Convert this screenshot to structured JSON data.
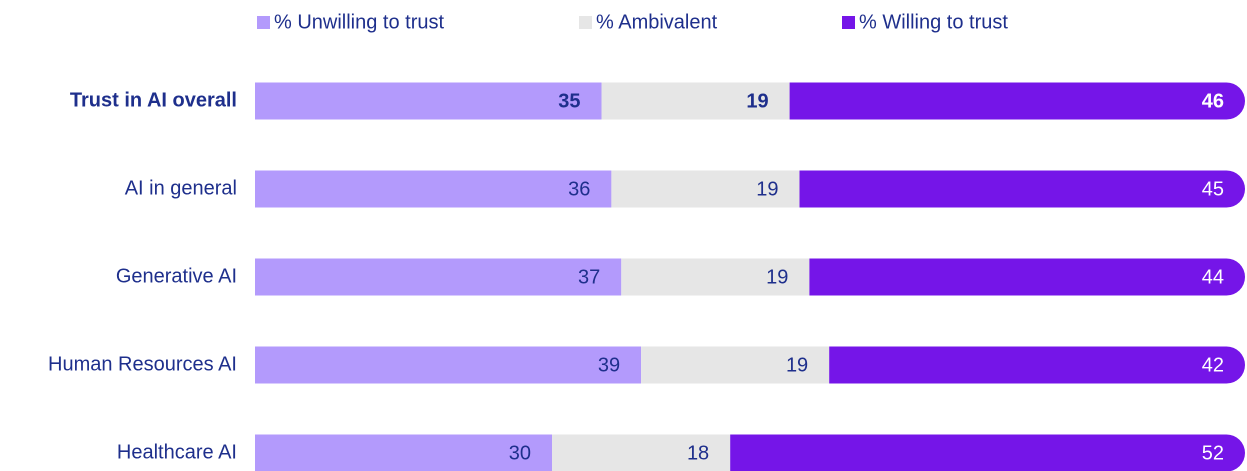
{
  "chart_data": {
    "type": "stacked-bar-horizontal",
    "categories": [
      "Trust in AI overall",
      "AI in general",
      "Generative AI",
      "Human Resources AI",
      "Healthcare AI"
    ],
    "series": [
      {
        "name": "% Unwilling to trust",
        "color": "#b39afc",
        "values": [
          35,
          36,
          37,
          39,
          30
        ]
      },
      {
        "name": "% Ambivalent",
        "color": "#e6e6e6",
        "values": [
          19,
          19,
          19,
          19,
          18
        ]
      },
      {
        "name": "% Willing to trust",
        "color": "#7515e8",
        "values": [
          46,
          45,
          44,
          42,
          52
        ]
      }
    ],
    "legend": "top"
  }
}
